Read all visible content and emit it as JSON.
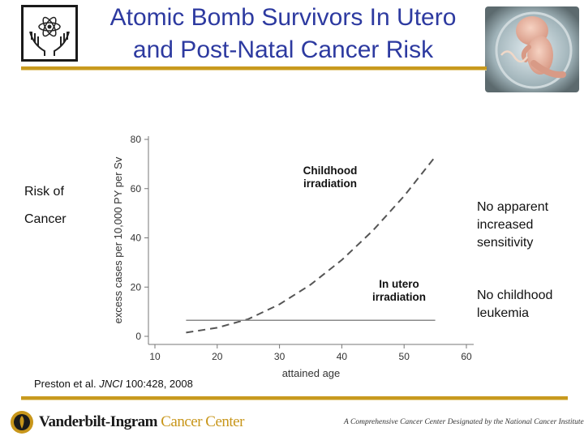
{
  "slide": {
    "title_line1": "Atomic Bomb Survivors In Utero",
    "title_line2": "and Post-Natal Cancer Risk",
    "left_label_line1": "Risk of",
    "left_label_line2": "Cancer",
    "right_note1": [
      "No apparent",
      "increased",
      "sensitivity"
    ],
    "right_note2": [
      "No childhood",
      "leukemia"
    ],
    "reference_prefix": "Preston et al. ",
    "reference_journal": "JNCI",
    "reference_suffix": " 100:428, 2008",
    "footer_brand_part1": "Vanderbilt-Ingram",
    "footer_brand_part2": " Cancer Center",
    "footer_tagline": "A Comprehensive Cancer Center Designated by the National Cancer Institute"
  },
  "colors": {
    "title": "#2d3aa0",
    "rule": "#c89a1e",
    "dashed_curve": "#555555",
    "flat_line": "#8a8a8a"
  },
  "icons": {
    "logo": "hands-holding-atom-icon",
    "photo": "fetus-in-womb-icon",
    "footer_seal": "oak-leaf-seal-icon"
  },
  "chart_data": {
    "type": "line",
    "xlabel": "attained age",
    "ylabel": "excess cases per 10,000 PY per Sv",
    "xlim": [
      10,
      60
    ],
    "ylim": [
      0,
      80
    ],
    "x_ticks": [
      10,
      20,
      30,
      40,
      50,
      60
    ],
    "y_ticks": [
      0,
      20,
      40,
      60,
      80
    ],
    "grid": false,
    "series": [
      {
        "name": "Childhood irradiation",
        "style": "dashed",
        "x": [
          15,
          20,
          25,
          30,
          35,
          40,
          45,
          50,
          55
        ],
        "values": [
          1.5,
          3.5,
          7,
          13,
          21,
          31,
          43,
          57,
          73
        ]
      },
      {
        "name": "In utero irradiation",
        "style": "solid",
        "x": [
          15,
          55
        ],
        "values": [
          6.5,
          6.5
        ]
      }
    ],
    "annotations": [
      {
        "text": [
          "Childhood",
          "irradiation"
        ]
      },
      {
        "text": [
          "In utero",
          "irradiation"
        ]
      }
    ]
  }
}
